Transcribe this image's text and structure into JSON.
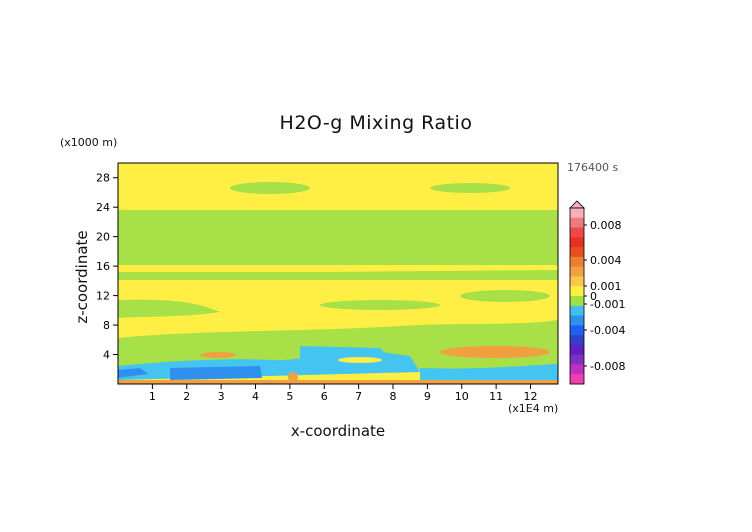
{
  "chart_data": {
    "type": "heatmap",
    "title": "H2O-g Mixing Ratio",
    "xlabel": "x-coordinate",
    "ylabel": "z-coordinate",
    "x_unit": "(x1E4 m)",
    "y_unit": "(x1000 m)",
    "time_label": "176400 s",
    "x_ticks": [
      "1",
      "2",
      "3",
      "4",
      "5",
      "6",
      "7",
      "8",
      "9",
      "10",
      "11",
      "12"
    ],
    "y_ticks": [
      "4",
      "8",
      "12",
      "16",
      "20",
      "24",
      "28"
    ],
    "xlim": [
      0,
      12.8
    ],
    "ylim": [
      0,
      30
    ],
    "colorbar": {
      "labels": [
        "0.008",
        "0.004",
        "0.001",
        "0",
        "-0.001",
        "-0.004",
        "-0.008"
      ],
      "colors": [
        "#f8b0b8",
        "#f07880",
        "#f04848",
        "#e83020",
        "#e85020",
        "#ec8030",
        "#f0a040",
        "#f8c848",
        "#fff040",
        "#a0e040",
        "#40c0f0",
        "#3090f0",
        "#2060f0",
        "#3040d0",
        "#6020c0",
        "#8030c0",
        "#c030c0",
        "#f040b0"
      ]
    },
    "bands": [
      {
        "z": [
          0,
          0.6
        ],
        "color": "#f0a040",
        "level": "0.001"
      },
      {
        "z": [
          0.6,
          2.2
        ],
        "color": "#40c0f0",
        "level": "-0.001 to -0.004"
      },
      {
        "z": [
          2.2,
          4.5
        ],
        "color": "#a0e040",
        "level": "0 to -0.001"
      },
      {
        "z": [
          4.5,
          30
        ],
        "color": "#fff040",
        "level": "0 to 0.001"
      }
    ]
  }
}
